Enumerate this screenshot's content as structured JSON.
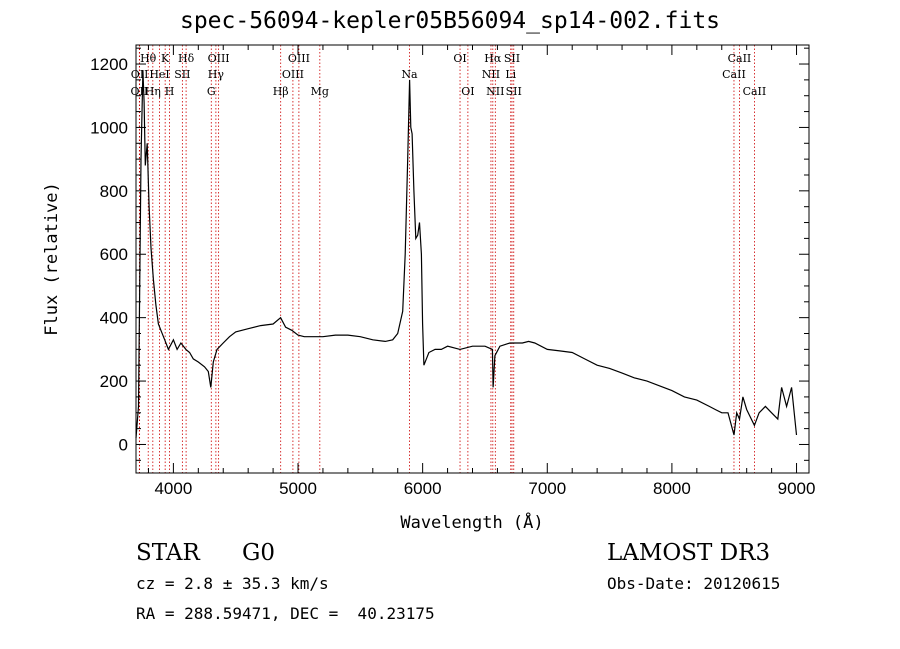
{
  "chart_data": {
    "type": "line",
    "title": "spec-56094-kepler05B56094_sp14-002.fits",
    "xlabel": "Wavelength (Å)",
    "ylabel": "Flux (relative)",
    "xlim": [
      3700,
      9100
    ],
    "ylim": [
      -90,
      1260
    ],
    "xticks": [
      4000,
      5000,
      6000,
      7000,
      8000,
      9000
    ],
    "yticks": [
      0,
      200,
      400,
      600,
      800,
      1000,
      1200
    ],
    "line_color": "#000000",
    "marker_color": "#cc0000",
    "series": [
      {
        "name": "flux",
        "points": [
          [
            3700,
            20
          ],
          [
            3720,
            120
          ],
          [
            3740,
            900
          ],
          [
            3755,
            1180
          ],
          [
            3765,
            1080
          ],
          [
            3775,
            880
          ],
          [
            3790,
            950
          ],
          [
            3805,
            750
          ],
          [
            3820,
            620
          ],
          [
            3840,
            520
          ],
          [
            3860,
            440
          ],
          [
            3880,
            380
          ],
          [
            3900,
            360
          ],
          [
            3930,
            330
          ],
          [
            3960,
            300
          ],
          [
            4000,
            330
          ],
          [
            4030,
            300
          ],
          [
            4060,
            320
          ],
          [
            4100,
            300
          ],
          [
            4130,
            290
          ],
          [
            4160,
            270
          ],
          [
            4200,
            260
          ],
          [
            4250,
            245
          ],
          [
            4280,
            230
          ],
          [
            4300,
            180
          ],
          [
            4320,
            260
          ],
          [
            4350,
            300
          ],
          [
            4400,
            320
          ],
          [
            4450,
            340
          ],
          [
            4500,
            355
          ],
          [
            4600,
            365
          ],
          [
            4700,
            375
          ],
          [
            4800,
            380
          ],
          [
            4860,
            400
          ],
          [
            4900,
            370
          ],
          [
            4950,
            360
          ],
          [
            5000,
            345
          ],
          [
            5050,
            340
          ],
          [
            5100,
            340
          ],
          [
            5200,
            340
          ],
          [
            5300,
            345
          ],
          [
            5400,
            345
          ],
          [
            5500,
            340
          ],
          [
            5600,
            330
          ],
          [
            5700,
            325
          ],
          [
            5760,
            330
          ],
          [
            5800,
            350
          ],
          [
            5840,
            420
          ],
          [
            5860,
            600
          ],
          [
            5880,
            900
          ],
          [
            5895,
            1150
          ],
          [
            5905,
            1000
          ],
          [
            5915,
            980
          ],
          [
            5930,
            800
          ],
          [
            5945,
            650
          ],
          [
            5960,
            660
          ],
          [
            5975,
            700
          ],
          [
            5990,
            600
          ],
          [
            6000,
            380
          ],
          [
            6010,
            250
          ],
          [
            6050,
            290
          ],
          [
            6100,
            300
          ],
          [
            6150,
            300
          ],
          [
            6200,
            310
          ],
          [
            6300,
            300
          ],
          [
            6400,
            310
          ],
          [
            6500,
            310
          ],
          [
            6560,
            300
          ],
          [
            6565,
            180
          ],
          [
            6580,
            280
          ],
          [
            6620,
            310
          ],
          [
            6700,
            320
          ],
          [
            6800,
            320
          ],
          [
            6850,
            325
          ],
          [
            6900,
            320
          ],
          [
            7000,
            300
          ],
          [
            7100,
            295
          ],
          [
            7200,
            290
          ],
          [
            7300,
            270
          ],
          [
            7400,
            250
          ],
          [
            7500,
            240
          ],
          [
            7600,
            225
          ],
          [
            7700,
            210
          ],
          [
            7800,
            200
          ],
          [
            7900,
            185
          ],
          [
            8000,
            170
          ],
          [
            8100,
            150
          ],
          [
            8200,
            140
          ],
          [
            8300,
            120
          ],
          [
            8350,
            110
          ],
          [
            8400,
            100
          ],
          [
            8450,
            100
          ],
          [
            8498,
            30
          ],
          [
            8520,
            100
          ],
          [
            8542,
            80
          ],
          [
            8570,
            150
          ],
          [
            8600,
            110
          ],
          [
            8662,
            60
          ],
          [
            8700,
            100
          ],
          [
            8750,
            120
          ],
          [
            8800,
            100
          ],
          [
            8850,
            80
          ],
          [
            8880,
            180
          ],
          [
            8920,
            120
          ],
          [
            8960,
            180
          ],
          [
            9000,
            30
          ]
        ]
      }
    ],
    "line_markers": [
      {
        "label": "OII",
        "wavelength": 3727,
        "row": 3
      },
      {
        "label": "OII",
        "wavelength": 3729,
        "row": 2
      },
      {
        "label": "Hθ",
        "wavelength": 3798,
        "row": 1
      },
      {
        "label": "Hη",
        "wavelength": 3835,
        "row": 3
      },
      {
        "label": "HeI",
        "wavelength": 3889,
        "row": 2
      },
      {
        "label": "K",
        "wavelength": 3934,
        "row": 1
      },
      {
        "label": "H",
        "wavelength": 3969,
        "row": 3
      },
      {
        "label": "SII",
        "wavelength": 4072,
        "row": 2
      },
      {
        "label": "Hδ",
        "wavelength": 4102,
        "row": 1
      },
      {
        "label": "G",
        "wavelength": 4304,
        "row": 3
      },
      {
        "label": "Hγ",
        "wavelength": 4341,
        "row": 2
      },
      {
        "label": "OIII",
        "wavelength": 4363,
        "row": 1
      },
      {
        "label": "Hβ",
        "wavelength": 4861,
        "row": 3
      },
      {
        "label": "OIII",
        "wavelength": 4959,
        "row": 2
      },
      {
        "label": "OIII",
        "wavelength": 5007,
        "row": 1
      },
      {
        "label": "Mg",
        "wavelength": 5175,
        "row": 3
      },
      {
        "label": "Na",
        "wavelength": 5894,
        "row": 2
      },
      {
        "label": "OI",
        "wavelength": 6300,
        "row": 1
      },
      {
        "label": "OI",
        "wavelength": 6363,
        "row": 3
      },
      {
        "label": "NII",
        "wavelength": 6548,
        "row": 2
      },
      {
        "label": "Hα",
        "wavelength": 6563,
        "row": 1
      },
      {
        "label": "NII",
        "wavelength": 6583,
        "row": 3
      },
      {
        "label": "Li",
        "wavelength": 6707,
        "row": 2
      },
      {
        "label": "SII",
        "wavelength": 6717,
        "row": 1
      },
      {
        "label": "SII",
        "wavelength": 6731,
        "row": 3
      },
      {
        "label": "CaII",
        "wavelength": 8498,
        "row": 2
      },
      {
        "label": "CaII",
        "wavelength": 8542,
        "row": 1
      },
      {
        "label": "CaII",
        "wavelength": 8662,
        "row": 3
      }
    ]
  },
  "info": {
    "object_class": "STAR",
    "subclass": "G0",
    "survey": "LAMOST DR3",
    "redshift": "cz = 2.8 ± 35.3 km/s",
    "obs_date": "Obs-Date: 20120615",
    "coords": "RA = 288.59471, DEC =  40.23175"
  }
}
